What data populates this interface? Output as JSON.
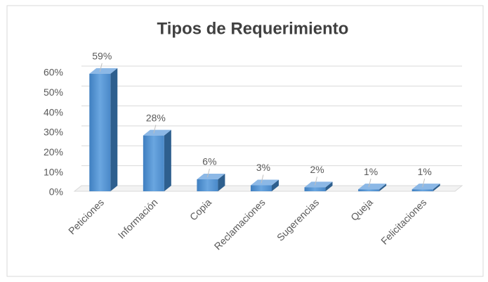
{
  "chart_data": {
    "type": "bar3d",
    "title": "Tipos de Requerimiento",
    "categories": [
      "Peticiones",
      "Información",
      "Copia",
      "Reclamaciones",
      "Sugerencias",
      "Queja",
      "Felicitaciones"
    ],
    "values": [
      59,
      28,
      6,
      3,
      2,
      1,
      1
    ],
    "value_labels": [
      "59%",
      "28%",
      "6%",
      "3%",
      "2%",
      "1%",
      "1%"
    ],
    "color": "#5b9bd5",
    "ylim": [
      0,
      60
    ],
    "yticks": [
      {
        "value": 0,
        "label": "0%"
      },
      {
        "value": 10,
        "label": "10%"
      },
      {
        "value": 20,
        "label": "20%"
      },
      {
        "value": 30,
        "label": "30%"
      },
      {
        "value": 40,
        "label": "40%"
      },
      {
        "value": 50,
        "label": "50%"
      },
      {
        "value": 60,
        "label": "60%"
      }
    ],
    "grid": true
  }
}
